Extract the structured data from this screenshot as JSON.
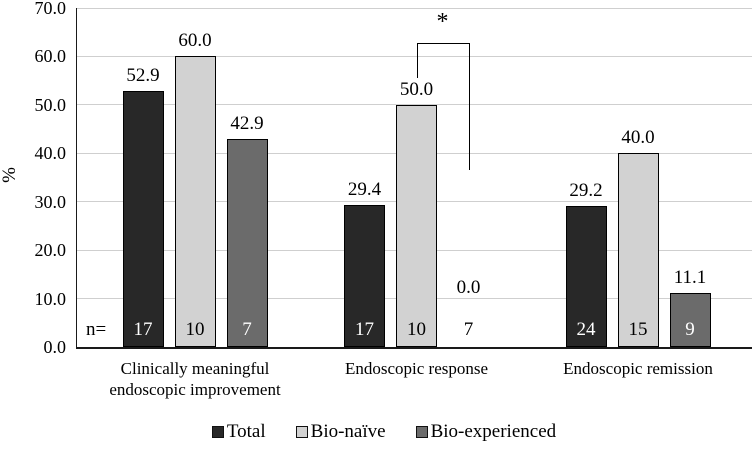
{
  "chart_data": {
    "type": "bar",
    "title": "",
    "ylabel": "%",
    "ylim": [
      0,
      70
    ],
    "ytick_step": 10,
    "ytick_labels": [
      "0.0",
      "10.0",
      "20.0",
      "30.0",
      "40.0",
      "50.0",
      "60.0",
      "70.0"
    ],
    "grid": true,
    "categories": [
      "Clinically meaningful\nendoscopic improvement",
      "Endoscopic response",
      "Endoscopic remission"
    ],
    "series": [
      {
        "name": "Total",
        "color": "#282828",
        "n_text_color": "#ffffff",
        "values": [
          52.9,
          29.4,
          29.2
        ],
        "value_labels": [
          "52.9",
          "29.4",
          "29.2"
        ],
        "n": [
          "17",
          "17",
          "24"
        ]
      },
      {
        "name": "Bio-naïve",
        "color": "#d2d2d2",
        "n_text_color": "#000000",
        "values": [
          60.0,
          50.0,
          40.0
        ],
        "value_labels": [
          "60.0",
          "50.0",
          "40.0"
        ],
        "n": [
          "10",
          "10",
          "15"
        ]
      },
      {
        "name": "Bio-experienced",
        "color": "#6b6b6b",
        "n_text_color": "#ffffff",
        "values": [
          42.9,
          0.0,
          11.1
        ],
        "value_labels": [
          "42.9",
          "0.0",
          "11.1"
        ],
        "n": [
          "7",
          "7",
          "9"
        ]
      }
    ],
    "n_prefix": "n=",
    "legend": {
      "position": "bottom",
      "entries": [
        "Total",
        "Bio-naïve",
        "Bio-experienced"
      ]
    },
    "annotation": {
      "symbol": "*",
      "category_index": 1,
      "series_a": 1,
      "series_b": 2,
      "bracket_top_value": 62.8,
      "arm_a_bottom_value": 55.5,
      "arm_b_bottom_value": 36.5
    }
  },
  "colors": {
    "axis": "#1a1a1a",
    "gridline": "#cfcfcf",
    "bar_border": "#000000",
    "text": "#000000",
    "background": "#ffffff"
  }
}
